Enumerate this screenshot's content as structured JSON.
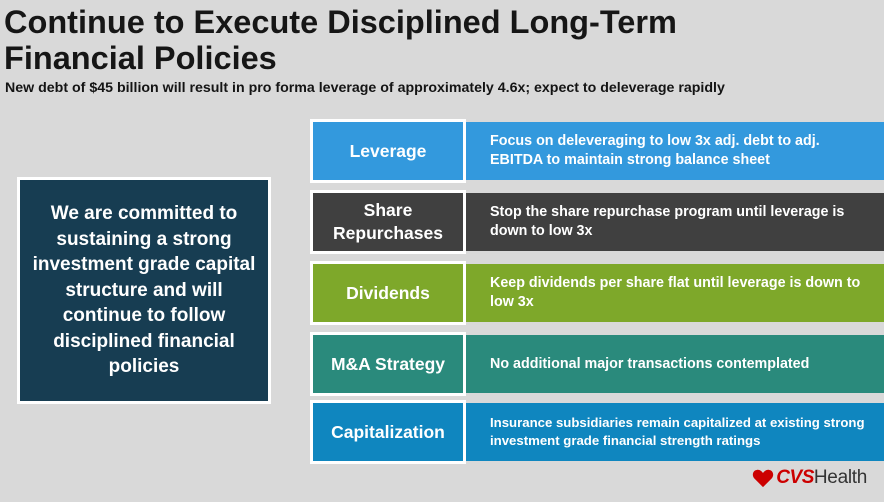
{
  "title_lines": [
    "Continue to Execute Disciplined Long-Term",
    "Financial Policies"
  ],
  "subtitle": "New debt of $45 billion will result in pro forma leverage of approximately 4.6x; expect to deleverage rapidly",
  "callout": "We are committed to sustaining a strong investment grade capital structure and will continue to follow disciplined financial policies",
  "rows": [
    {
      "label": "Leverage",
      "text": "Focus on deleveraging to low 3x adj. debt to adj. EBITDA to maintain strong balance sheet",
      "color": "#3399dd"
    },
    {
      "label": "Share Repurchases",
      "text": "Stop the share repurchase program until leverage is down to low 3x",
      "color": "#404040"
    },
    {
      "label": "Dividends",
      "text": "Keep dividends per share flat until leverage is down to low 3x",
      "color": "#7ea82a"
    },
    {
      "label": "M&A Strategy",
      "text": "No additional major transactions contemplated",
      "color": "#2a8a7c"
    },
    {
      "label": "Capitalization",
      "text": "Insurance subsidiaries remain capitalized at existing strong investment grade financial strength ratings",
      "color": "#0f86bf"
    }
  ],
  "logo": {
    "brand": "CVS",
    "suffix": "Health",
    "icon": "heart-icon",
    "color": "#cc0000"
  }
}
